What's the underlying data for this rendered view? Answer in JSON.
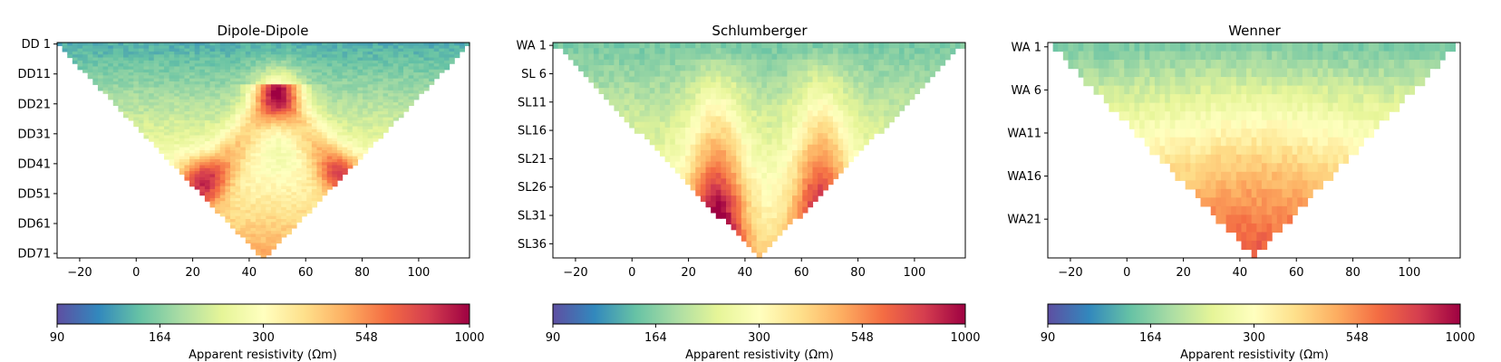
{
  "chart_data": [
    {
      "type": "heatmap",
      "title": "Dipole-Dipole",
      "pseudosection": "triangle",
      "xlim": [
        -28,
        118
      ],
      "xticks": [
        -20,
        0,
        20,
        40,
        60,
        80,
        100
      ],
      "yticks": [
        "DD 1",
        "DD11",
        "DD21",
        "DD31",
        "DD41",
        "DD51",
        "DD61",
        "DD71"
      ],
      "n_levels": 72,
      "x_extent": [
        -28,
        118
      ],
      "apex_x": 45,
      "pattern": "inverted-V of high values peaking near x=50, level DD21; maxima near x=22 and x=73 at DD45",
      "colorbar": {
        "label": "Apparent resistivity (Ωm)",
        "scale": "log",
        "ticks": [
          "90",
          "164",
          "300",
          "548",
          "1000"
        ],
        "range": [
          90,
          1000
        ],
        "colormap": "Spectral_r"
      }
    },
    {
      "type": "heatmap",
      "title": "Schlumberger",
      "pseudosection": "triangle",
      "xlim": [
        -28,
        118
      ],
      "xticks": [
        -20,
        0,
        20,
        40,
        60,
        80,
        100
      ],
      "yticks": [
        "WA 1",
        "SL 6",
        "SL11",
        "SL16",
        "SL21",
        "SL26",
        "SL31",
        "SL36"
      ],
      "n_levels": 38,
      "x_extent": [
        -28,
        118
      ],
      "apex_x": 45,
      "pattern": "two vertical high-value lobes centred near x=30 and x=67, increasing with depth",
      "colorbar": {
        "label": "Apparent resistivity (Ωm)",
        "scale": "log",
        "ticks": [
          "90",
          "164",
          "300",
          "548",
          "1000"
        ],
        "range": [
          90,
          1000
        ],
        "colormap": "Spectral_r"
      }
    },
    {
      "type": "heatmap",
      "title": "Wenner",
      "pseudosection": "triangle",
      "xlim": [
        -28,
        118
      ],
      "xticks": [
        -20,
        0,
        20,
        40,
        60,
        80,
        100
      ],
      "yticks": [
        "WA 1",
        "WA 6",
        "WA11",
        "WA16",
        "WA21"
      ],
      "n_levels": 25,
      "x_extent": [
        -28,
        118
      ],
      "apex_x": 45,
      "pattern": "smooth increase of resistivity with depth, highest at the apex",
      "colorbar": {
        "label": "Apparent resistivity (Ωm)",
        "scale": "log",
        "ticks": [
          "90",
          "164",
          "300",
          "548",
          "1000"
        ],
        "range": [
          90,
          1000
        ],
        "colormap": "Spectral_r"
      }
    }
  ]
}
